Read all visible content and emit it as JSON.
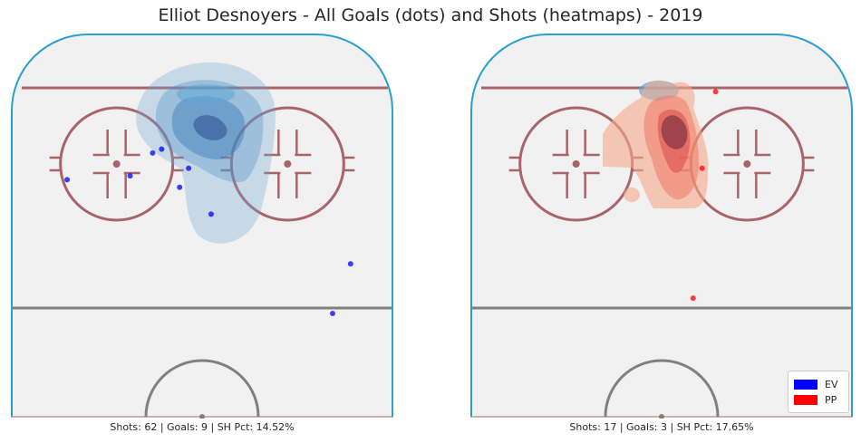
{
  "title": "Elliot Desnoyers - All Goals (dots) and Shots (heatmaps) - 2019",
  "colors": {
    "ice": "#f1f1f1",
    "boards": "#2a9fd0",
    "red_line": "#a8646a",
    "center_line": "#808080",
    "ev": "#0000ff",
    "pp": "#ff0000"
  },
  "legend": [
    {
      "label": "EV",
      "color": "#0000ff"
    },
    {
      "label": "PP",
      "color": "#ff0000"
    }
  ],
  "chart_data": [
    {
      "type": "scatter",
      "panel": "left",
      "caption": "Shots: 62 | Goals: 9 | SH Pct: 14.52%",
      "stats": {
        "shots": 62,
        "goals": 9,
        "sh_pct": 14.52
      },
      "series": [
        {
          "name": "EV",
          "color": "#0000ff",
          "goals": [
            [
              -30,
              62
            ],
            [
              -11,
              69
            ],
            [
              -9,
              70
            ],
            [
              -16,
              63
            ],
            [
              -5,
              60
            ],
            [
              -3,
              65
            ],
            [
              2,
              53
            ],
            [
              33,
              40
            ],
            [
              29,
              27
            ]
          ]
        }
      ],
      "heatmap": "blue shot density centered near x=2, y=58"
    },
    {
      "type": "scatter",
      "panel": "right",
      "caption": "Shots: 17 | Goals: 3 | SH Pct: 17.65%",
      "stats": {
        "shots": 17,
        "goals": 3,
        "sh_pct": 17.65
      },
      "series": [
        {
          "name": "PP",
          "color": "#ff0000",
          "goals": [
            [
              12,
              85
            ],
            [
              9,
              65
            ],
            [
              7,
              31
            ]
          ]
        }
      ],
      "heatmap": "red shot density centered near x=8, y=56"
    }
  ]
}
